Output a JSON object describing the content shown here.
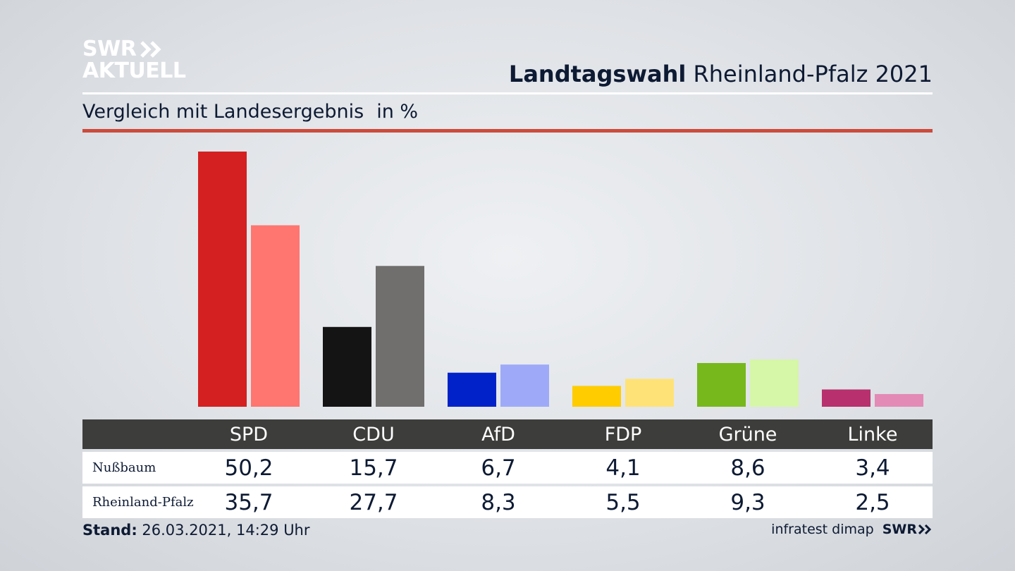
{
  "header": {
    "logo_line1": "SWR",
    "logo_line2": "AKTUELL",
    "title_bold": "Landtagswahl",
    "title_rest": "Rheinland-Pfalz 2021",
    "subtitle": "Vergleich mit Landesergebnis",
    "unit": "in %"
  },
  "colors": {
    "accent_rule": "#cc4b3c",
    "table_header_bg": "#3d3d3b"
  },
  "chart_data": {
    "type": "bar",
    "categories": [
      "SPD",
      "CDU",
      "AfD",
      "FDP",
      "Grüne",
      "Linke"
    ],
    "series": [
      {
        "name": "Nußbaum",
        "values": [
          50.2,
          15.7,
          6.7,
          4.1,
          8.6,
          3.4
        ],
        "value_labels": [
          "50,2",
          "15,7",
          "6,7",
          "4,1",
          "8,6",
          "3,4"
        ],
        "colors": [
          "#d42020",
          "#141414",
          "#0022c8",
          "#ffcc00",
          "#77b81c",
          "#b8306e"
        ]
      },
      {
        "name": "Rheinland-Pfalz",
        "values": [
          35.7,
          27.7,
          8.3,
          5.5,
          9.3,
          2.5
        ],
        "value_labels": [
          "35,7",
          "27,7",
          "8,3",
          "5,5",
          "9,3",
          "2,5"
        ],
        "colors": [
          "#ff7670",
          "#706f6d",
          "#9eaaf8",
          "#ffe277",
          "#d6f6a8",
          "#e38ab6"
        ]
      }
    ],
    "ylim": [
      0,
      50.2
    ],
    "grid": false,
    "legend": "table-below"
  },
  "footer": {
    "stand_label": "Stand:",
    "stand_value": "26.03.2021, 14:29 Uhr",
    "source": "infratest dimap",
    "brand": "SWR"
  }
}
